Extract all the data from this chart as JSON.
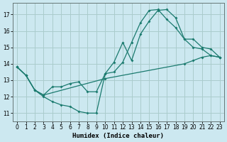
{
  "xlabel": "Humidex (Indice chaleur)",
  "bg_color": "#cce8f0",
  "line_color": "#1a7a6e",
  "grid_color": "#aacccc",
  "xlim": [
    -0.5,
    23.5
  ],
  "ylim": [
    10.5,
    17.7
  ],
  "xticks": [
    0,
    1,
    2,
    3,
    4,
    5,
    6,
    7,
    8,
    9,
    10,
    11,
    12,
    13,
    14,
    15,
    16,
    17,
    18,
    19,
    20,
    21,
    22,
    23
  ],
  "yticks": [
    11,
    12,
    13,
    14,
    15,
    16,
    17
  ],
  "line1_x": [
    0,
    1,
    2,
    3,
    4,
    5,
    6,
    7,
    8,
    9,
    10,
    11,
    12,
    13,
    14,
    15,
    16,
    17,
    18,
    19,
    20,
    21,
    22,
    23
  ],
  "line1_y": [
    13.8,
    13.3,
    12.4,
    12.0,
    11.7,
    11.5,
    11.4,
    11.1,
    11.0,
    11.0,
    13.4,
    14.1,
    15.3,
    14.2,
    15.8,
    16.6,
    17.25,
    17.3,
    16.8,
    15.5,
    15.0,
    14.9,
    14.5,
    14.4
  ],
  "line2_x": [
    0,
    1,
    2,
    3,
    4,
    5,
    6,
    7,
    8,
    9,
    10,
    11,
    12,
    13,
    14,
    15,
    16,
    17,
    18,
    19,
    20,
    21,
    22,
    23
  ],
  "line2_y": [
    13.8,
    13.3,
    12.4,
    12.1,
    12.6,
    12.6,
    12.8,
    12.9,
    12.3,
    12.3,
    13.4,
    13.5,
    14.1,
    15.3,
    16.5,
    17.25,
    17.3,
    16.7,
    16.2,
    15.5,
    15.5,
    15.0,
    14.9,
    14.4
  ],
  "line3_x": [
    0,
    1,
    2,
    3,
    10,
    19,
    20,
    21,
    22,
    23
  ],
  "line3_y": [
    13.8,
    13.3,
    12.4,
    12.1,
    13.1,
    14.0,
    14.2,
    14.4,
    14.5,
    14.4
  ]
}
